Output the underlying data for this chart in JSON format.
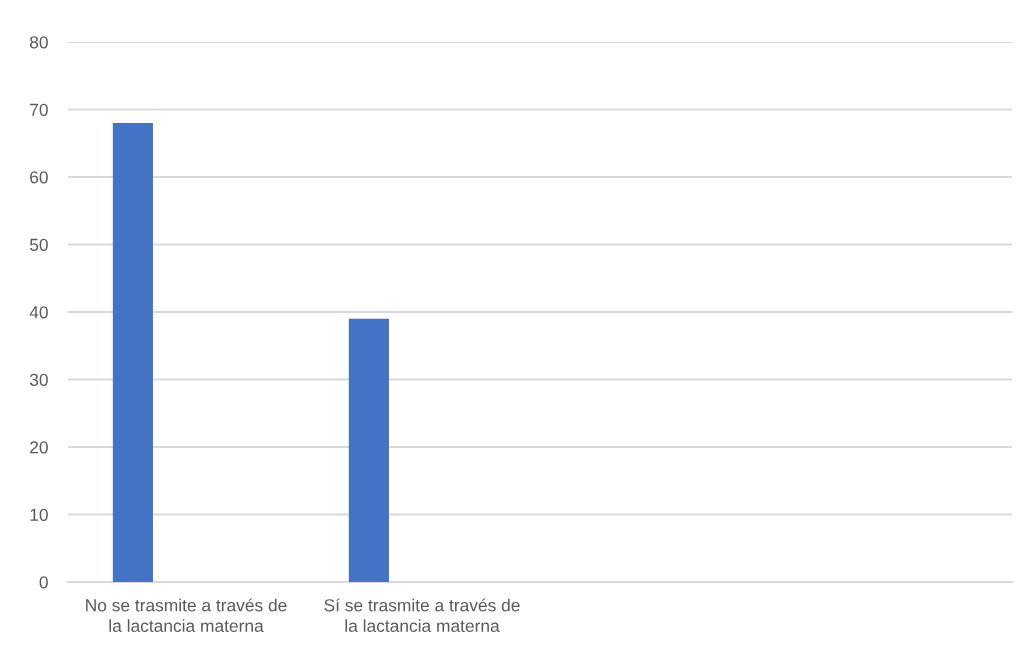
{
  "chart_data": {
    "type": "bar",
    "categories": [
      "No se trasmite a través de la lactancia materna",
      "Sí se trasmite a través de la lactancia materna",
      null,
      null
    ],
    "values": [
      68,
      39,
      null,
      null
    ],
    "color": "#4472c4",
    "ylim": [
      0,
      80
    ],
    "yticks": [
      0,
      10,
      20,
      30,
      40,
      50,
      60,
      70,
      80
    ],
    "grid": "y"
  }
}
